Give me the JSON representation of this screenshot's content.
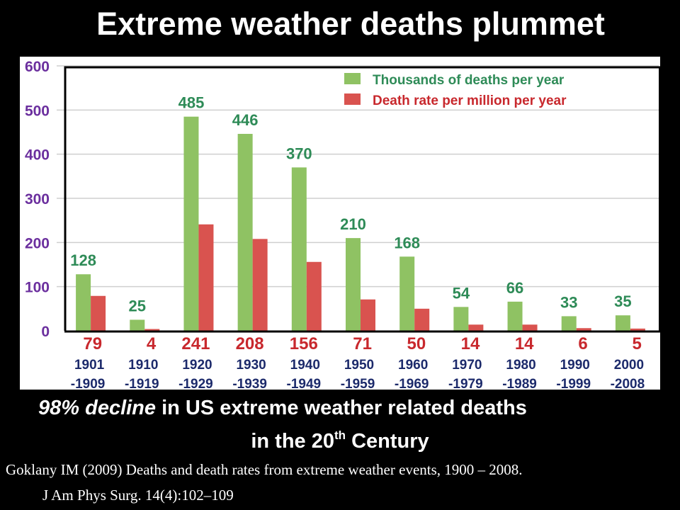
{
  "title": "Extreme weather deaths plummet",
  "subtitle": {
    "italic_part": "98% decline",
    "rest_line1": " in US extreme weather related deaths",
    "line2_prefix": "in the 20",
    "line2_sup": "th",
    "line2_suffix": " Century"
  },
  "citation": {
    "line1": "Goklany IM (2009) Deaths and death rates from extreme weather events, 1900 – 2008.",
    "line2": "J Am Phys Surg. 14(4):102–109"
  },
  "colors": {
    "green": "#8fc263",
    "green_label": "#2e8b57",
    "red": "#d9534f",
    "red_label": "#c8282d",
    "axis_label": "#6b2f9e",
    "year_label": "#1c2a6b",
    "grid": "#cfcfcf"
  },
  "chart_data": {
    "type": "bar",
    "title": "Extreme weather deaths plummet",
    "xlabel": "",
    "ylabel": "",
    "ylim": [
      0,
      600
    ],
    "yticks": [
      "0",
      "100",
      "200",
      "300",
      "400",
      "500",
      "600"
    ],
    "grid": true,
    "legend_position": "top-right",
    "categories": [
      {
        "start": "1901",
        "end": "-1909"
      },
      {
        "start": "1910",
        "end": "-1919"
      },
      {
        "start": "1920",
        "end": "-1929"
      },
      {
        "start": "1930",
        "end": "-1939"
      },
      {
        "start": "1940",
        "end": "-1949"
      },
      {
        "start": "1950",
        "end": "-1959"
      },
      {
        "start": "1960",
        "end": "-1969"
      },
      {
        "start": "1970",
        "end": "-1979"
      },
      {
        "start": "1980",
        "end": "-1989"
      },
      {
        "start": "1990",
        "end": "-1999"
      },
      {
        "start": "2000",
        "end": "-2008"
      }
    ],
    "series": [
      {
        "name": "Thousands of deaths per year",
        "color": "#8fc263",
        "values": [
          128,
          25,
          485,
          446,
          370,
          210,
          168,
          54,
          66,
          33,
          35
        ]
      },
      {
        "name": "Death rate per million per year",
        "color": "#d9534f",
        "values": [
          79,
          4,
          241,
          208,
          156,
          71,
          50,
          14,
          14,
          6,
          5
        ]
      }
    ]
  }
}
